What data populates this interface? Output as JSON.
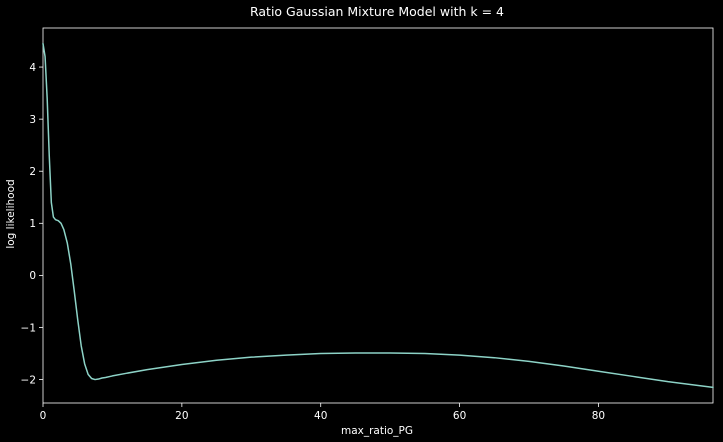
{
  "chart_data": {
    "type": "line",
    "title": "Ratio Gaussian Mixture Model with k = 4",
    "xlabel": "max_ratio_PG",
    "ylabel": "log likelihood",
    "xlim": [
      0,
      96.5
    ],
    "ylim": [
      -2.45,
      4.75
    ],
    "x_ticks": [
      0,
      20,
      40,
      60,
      80
    ],
    "x_tick_labels": [
      "0",
      "20",
      "40",
      "60",
      "80"
    ],
    "y_ticks": [
      -2,
      -1,
      0,
      1,
      2,
      3,
      4
    ],
    "y_tick_labels": [
      "−2",
      "−1",
      "0",
      "1",
      "2",
      "3",
      "4"
    ],
    "grid": false,
    "background_color": "#000000",
    "text_color": "#ffffff",
    "line_color": "#8dd3c7",
    "series": [
      {
        "x": [
          0,
          0.3,
          0.6,
          0.9,
          1.2,
          1.5,
          1.8,
          2.2,
          2.6,
          3.0,
          3.5,
          4.0,
          4.5,
          5.0,
          5.5,
          6.0,
          6.5,
          7.0,
          7.5,
          8.0,
          8.5,
          9.0,
          10,
          12,
          15,
          20,
          25,
          30,
          35,
          40,
          45,
          50,
          55,
          60,
          65,
          70,
          75,
          80,
          85,
          90,
          96.5
        ],
        "y": [
          4.45,
          4.2,
          3.4,
          2.3,
          1.4,
          1.12,
          1.07,
          1.05,
          1.0,
          0.88,
          0.62,
          0.22,
          -0.3,
          -0.85,
          -1.35,
          -1.7,
          -1.9,
          -1.98,
          -2.0,
          -1.99,
          -1.97,
          -1.96,
          -1.93,
          -1.88,
          -1.81,
          -1.71,
          -1.63,
          -1.57,
          -1.53,
          -1.5,
          -1.49,
          -1.49,
          -1.5,
          -1.53,
          -1.58,
          -1.65,
          -1.74,
          -1.84,
          -1.94,
          -2.04,
          -2.15
        ]
      }
    ]
  }
}
